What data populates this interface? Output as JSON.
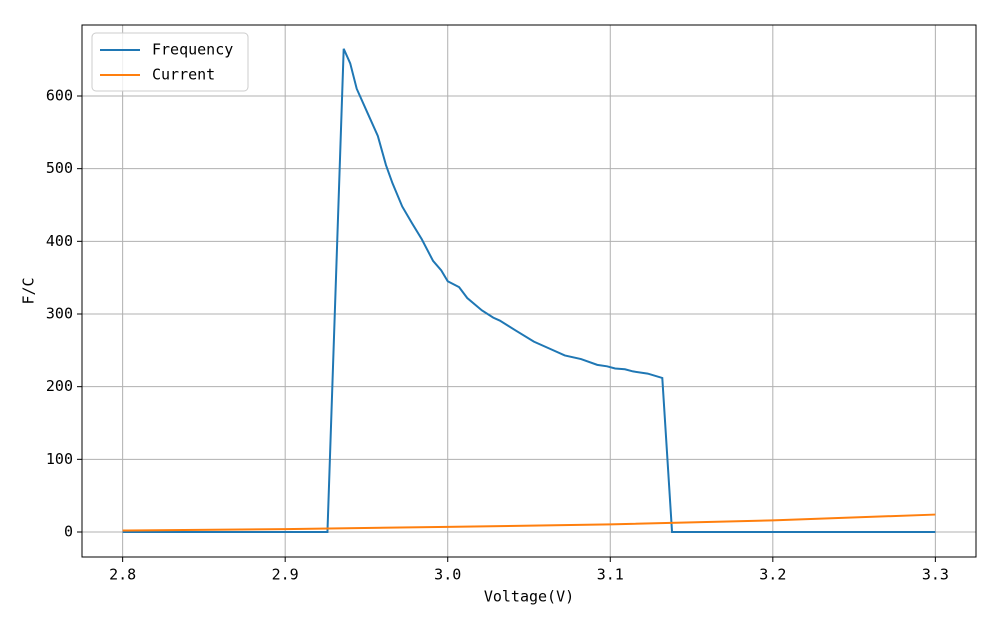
{
  "chart_data": {
    "type": "line",
    "xlabel": "Voltage(V)",
    "ylabel": "F/C",
    "xlim": [
      2.775,
      3.325
    ],
    "ylim": [
      -34.4,
      697.7
    ],
    "xticks": [
      2.8,
      2.9,
      {
        "value": 3.0,
        "label": "3.0"
      },
      3.1,
      3.2,
      3.3
    ],
    "yticks": [
      0,
      100,
      200,
      300,
      400,
      500,
      600
    ],
    "grid": true,
    "legend": "upper left",
    "series": [
      {
        "name": "Frequency",
        "color": "#1f77b4",
        "x": [
          2.8,
          2.85,
          2.9,
          2.926,
          2.936,
          2.94,
          2.944,
          2.951,
          2.957,
          2.962,
          2.966,
          2.972,
          2.978,
          2.984,
          2.991,
          2.996,
          3.0,
          3.007,
          3.012,
          3.021,
          3.028,
          3.032,
          3.042,
          3.053,
          3.063,
          3.072,
          3.082,
          3.092,
          3.098,
          3.103,
          3.109,
          3.114,
          3.123,
          3.132,
          3.138,
          3.2,
          3.3
        ],
        "values": [
          0,
          0,
          0,
          0,
          665,
          645,
          610,
          575,
          545,
          505,
          480,
          448,
          425,
          403,
          373,
          360,
          345,
          337,
          322,
          305,
          295,
          291,
          277,
          262,
          252,
          243,
          238,
          230,
          228,
          225,
          224,
          221,
          218,
          212,
          0,
          0,
          0
        ]
      },
      {
        "name": "Current",
        "color": "#ff7f0e",
        "x": [
          2.8,
          2.9,
          3.0,
          3.1,
          3.2,
          3.3
        ],
        "values": [
          2,
          4,
          7,
          10.5,
          16,
          24
        ]
      }
    ]
  }
}
